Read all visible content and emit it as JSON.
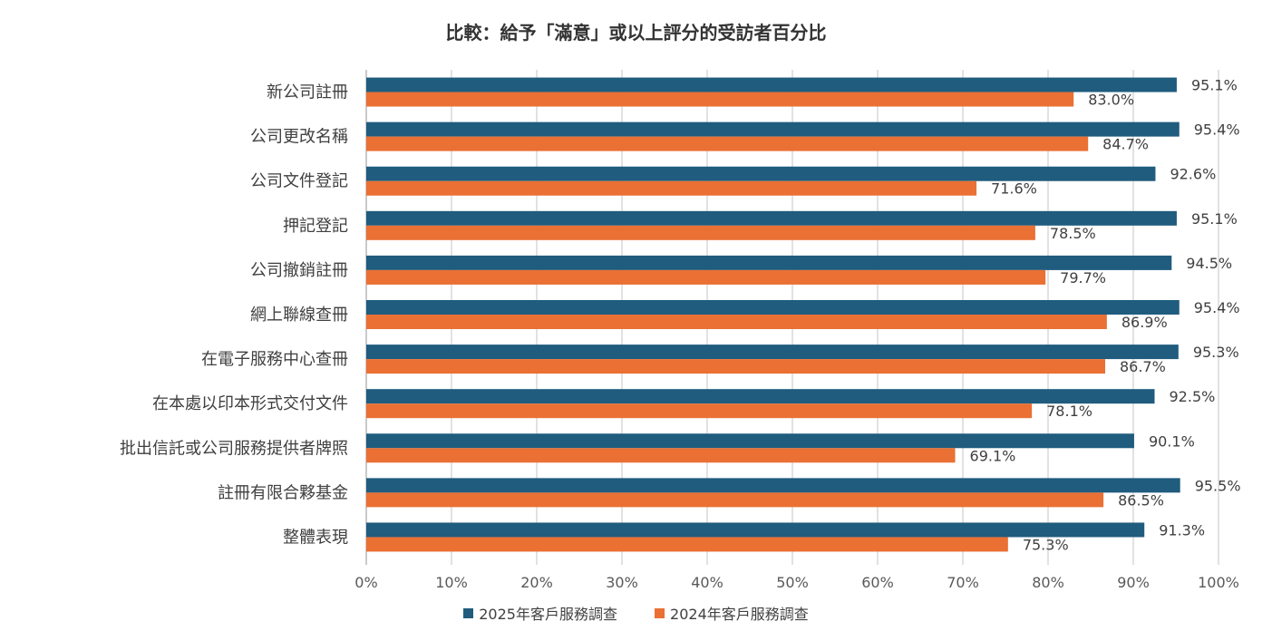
{
  "chart_data": {
    "type": "bar",
    "orientation": "horizontal",
    "title": "比較：給予「滿意」或以上評分的受訪者百分比",
    "categories": [
      "新公司註冊",
      "公司更改名稱",
      "公司文件登記",
      "押記登記",
      "公司撤銷註冊",
      "網上聯線查冊",
      "在電子服務中心查冊",
      "在本處以印本形式交付文件",
      "批出信託或公司服務提供者牌照",
      "註冊有限合夥基金",
      "整體表現"
    ],
    "series": [
      {
        "name": "2025年客戶服務調查",
        "color": "#1f5c7e",
        "values": [
          95.1,
          95.4,
          92.6,
          95.1,
          94.5,
          95.4,
          95.3,
          92.5,
          90.1,
          95.5,
          91.3
        ],
        "labels": [
          "95.1%",
          "95.4%",
          "92.6%",
          "95.1%",
          "94.5%",
          "95.4%",
          "95.3%",
          "92.5%",
          "90.1%",
          "95.5%",
          "91.3%"
        ]
      },
      {
        "name": "2024年客戶服務調查",
        "color": "#ea7034",
        "values": [
          83.0,
          84.7,
          71.6,
          78.5,
          79.7,
          86.9,
          86.7,
          78.1,
          69.1,
          86.5,
          75.3
        ],
        "labels": [
          "83.0%",
          "84.7%",
          "71.6%",
          "78.5%",
          "79.7%",
          "86.9%",
          "86.7%",
          "78.1%",
          "69.1%",
          "86.5%",
          "75.3%"
        ]
      }
    ],
    "xlim": [
      0,
      100
    ],
    "xticks": [
      "0%",
      "10%",
      "20%",
      "30%",
      "40%",
      "50%",
      "60%",
      "70%",
      "80%",
      "90%",
      "100%"
    ],
    "grid": true,
    "legend_position": "bottom"
  }
}
